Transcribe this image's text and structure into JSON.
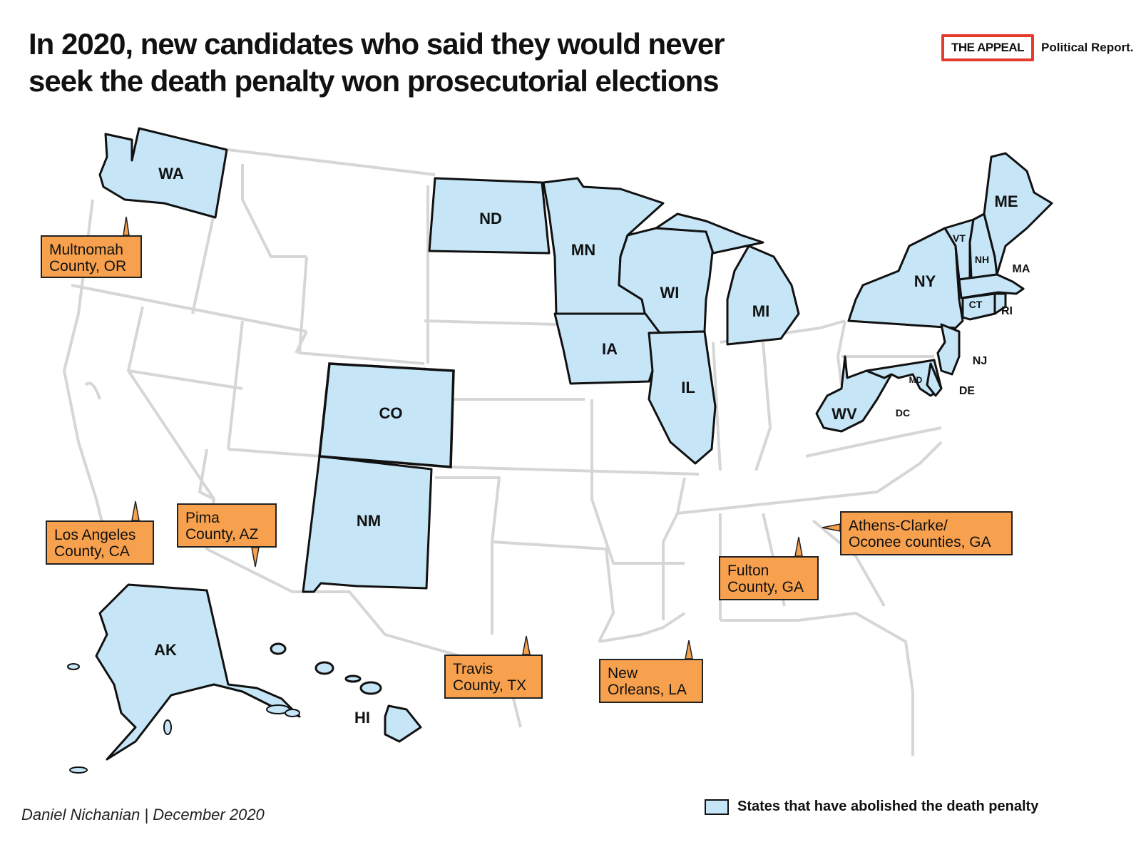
{
  "title": {
    "line1": "In 2020, new candidates who said they would never",
    "line2": "seek the death penalty won prosecutorial elections"
  },
  "brand": {
    "logo_text": "THE APPEAL",
    "subtitle": "Political Report."
  },
  "colors": {
    "abolished_fill": "#c6e6f7",
    "callout_fill": "#f7a14e",
    "state_border_gray": "#d6d6d6",
    "logo_red": "#e53b2c"
  },
  "map": {
    "state_labels": [
      "WA",
      "ND",
      "MN",
      "ME",
      "VT",
      "NH",
      "MA",
      "NY",
      "CT",
      "RI",
      "WI",
      "MI",
      "IA",
      "IL",
      "NJ",
      "MD",
      "DE",
      "DC",
      "WV",
      "CO",
      "NM",
      "AK",
      "HI"
    ],
    "abolished_states": [
      "WA",
      "ND",
      "MN",
      "ME",
      "VT",
      "NH",
      "MA",
      "NY",
      "CT",
      "RI",
      "WI",
      "MI",
      "IA",
      "IL",
      "NJ",
      "MD",
      "DE",
      "DC",
      "WV",
      "CO",
      "NM",
      "AK",
      "HI"
    ]
  },
  "callouts": [
    {
      "id": "multnomah",
      "text": "Multnomah\nCounty, OR"
    },
    {
      "id": "los-angeles",
      "text": "Los Angeles\nCounty, CA"
    },
    {
      "id": "pima",
      "text": "Pima\nCounty, AZ"
    },
    {
      "id": "athens",
      "text": "Athens-Clarke/\nOconee counties, GA"
    },
    {
      "id": "fulton",
      "text": "Fulton\nCounty, GA"
    },
    {
      "id": "travis",
      "text": "Travis\nCounty, TX"
    },
    {
      "id": "new-orleans",
      "text": "New\nOrleans, LA"
    }
  ],
  "legend": {
    "label": "States that have abolished the death penalty"
  },
  "byline": "Daniel Nichanian | December  2020"
}
